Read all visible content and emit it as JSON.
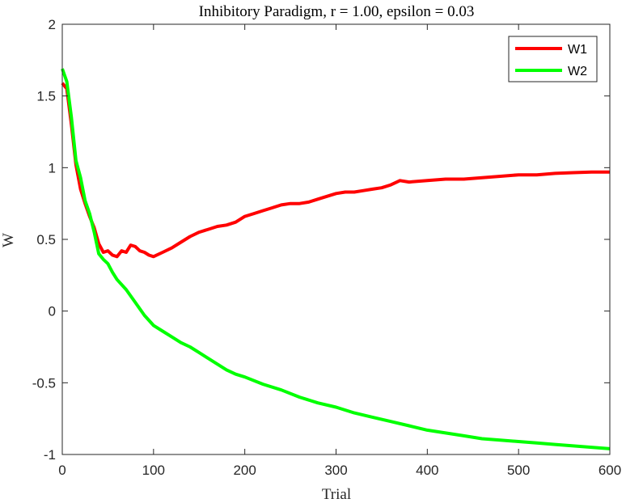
{
  "chart_data": {
    "type": "line",
    "title": "Inhibitory Paradigm, r = 1.00, epsilon = 0.03",
    "xlabel": "Trial",
    "ylabel": "W",
    "xlim": [
      0,
      600
    ],
    "ylim": [
      -1,
      2
    ],
    "xticks": [
      0,
      100,
      200,
      300,
      400,
      500,
      600
    ],
    "xtick_labels": [
      "0",
      "100",
      "200",
      "300",
      "400",
      "500",
      "600"
    ],
    "yticks": [
      -1,
      -0.5,
      0,
      0.5,
      1,
      1.5,
      2
    ],
    "ytick_labels": [
      "-1",
      "-0.5",
      "0",
      "0.5",
      "1",
      "1.5",
      "2"
    ],
    "grid": false,
    "legend_position": "top-right",
    "series": [
      {
        "name": "W1",
        "color": "#ff0000",
        "x": [
          0,
          5,
          10,
          15,
          20,
          25,
          30,
          35,
          40,
          45,
          50,
          55,
          60,
          65,
          70,
          75,
          80,
          85,
          90,
          95,
          100,
          110,
          120,
          130,
          140,
          150,
          160,
          170,
          180,
          190,
          200,
          210,
          220,
          230,
          240,
          250,
          260,
          270,
          280,
          290,
          300,
          310,
          320,
          330,
          340,
          350,
          360,
          370,
          380,
          400,
          420,
          440,
          460,
          480,
          500,
          520,
          540,
          560,
          580,
          600
        ],
        "y": [
          1.59,
          1.55,
          1.3,
          1.02,
          0.85,
          0.75,
          0.66,
          0.58,
          0.47,
          0.41,
          0.42,
          0.39,
          0.38,
          0.42,
          0.41,
          0.46,
          0.45,
          0.42,
          0.41,
          0.39,
          0.38,
          0.41,
          0.44,
          0.48,
          0.52,
          0.55,
          0.57,
          0.59,
          0.6,
          0.62,
          0.66,
          0.68,
          0.7,
          0.72,
          0.74,
          0.75,
          0.75,
          0.76,
          0.78,
          0.8,
          0.82,
          0.83,
          0.83,
          0.84,
          0.85,
          0.86,
          0.88,
          0.91,
          0.9,
          0.91,
          0.92,
          0.92,
          0.93,
          0.94,
          0.95,
          0.95,
          0.96,
          0.965,
          0.97,
          0.97
        ]
      },
      {
        "name": "W2",
        "color": "#00ff00",
        "x": [
          0,
          5,
          10,
          15,
          20,
          25,
          30,
          35,
          40,
          45,
          50,
          55,
          60,
          70,
          80,
          90,
          100,
          110,
          120,
          130,
          140,
          150,
          160,
          170,
          180,
          190,
          200,
          220,
          240,
          260,
          280,
          300,
          320,
          340,
          360,
          380,
          400,
          420,
          440,
          460,
          480,
          500,
          520,
          540,
          560,
          580,
          600
        ],
        "y": [
          1.69,
          1.6,
          1.35,
          1.05,
          0.93,
          0.77,
          0.68,
          0.55,
          0.4,
          0.36,
          0.33,
          0.27,
          0.22,
          0.15,
          0.06,
          -0.03,
          -0.1,
          -0.14,
          -0.18,
          -0.22,
          -0.25,
          -0.29,
          -0.33,
          -0.37,
          -0.41,
          -0.44,
          -0.46,
          -0.51,
          -0.55,
          -0.6,
          -0.64,
          -0.67,
          -0.71,
          -0.74,
          -0.77,
          -0.8,
          -0.83,
          -0.85,
          -0.87,
          -0.89,
          -0.9,
          -0.91,
          -0.92,
          -0.93,
          -0.94,
          -0.95,
          -0.96
        ]
      }
    ]
  }
}
